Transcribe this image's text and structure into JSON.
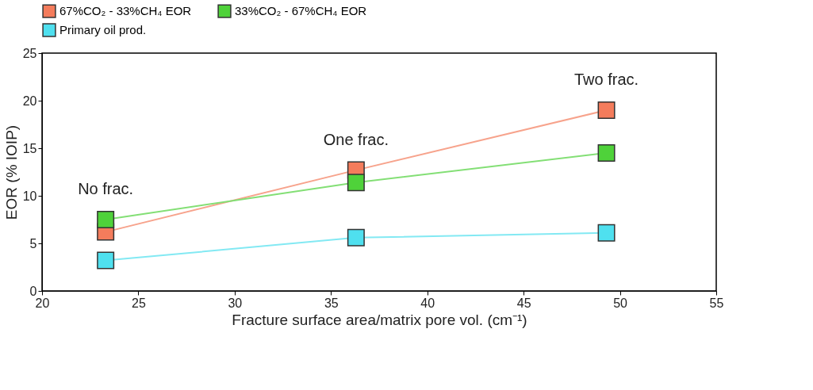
{
  "chart_data": {
    "type": "line",
    "xlabel": "Fracture surface area/matrix pore vol. (cm⁻¹)",
    "ylabel": "EOR (% IOIP)",
    "x": [
      23.3,
      36.3,
      49.3
    ],
    "series": [
      {
        "name": "67%CO₂ - 33%CH₄ EOR",
        "color": "#f47c5c",
        "values": [
          6.2,
          12.7,
          19.0
        ]
      },
      {
        "name": "33%CO₂ - 67%CH₄ EOR",
        "color": "#4fd23a",
        "values": [
          7.5,
          11.4,
          14.5
        ]
      },
      {
        "name": "Primary oil prod.",
        "color": "#4fe0ef",
        "values": [
          3.2,
          5.6,
          6.1
        ]
      }
    ],
    "xlim": [
      20,
      55
    ],
    "xticks": [
      20,
      25,
      30,
      35,
      40,
      45,
      50,
      55
    ],
    "ylim": [
      0,
      25
    ],
    "yticks": [
      0,
      5,
      10,
      15,
      20,
      25
    ],
    "annotations": [
      "No frac.",
      "One frac.",
      "Two frac."
    ],
    "marker": "square",
    "legend": "top",
    "grid": false
  }
}
